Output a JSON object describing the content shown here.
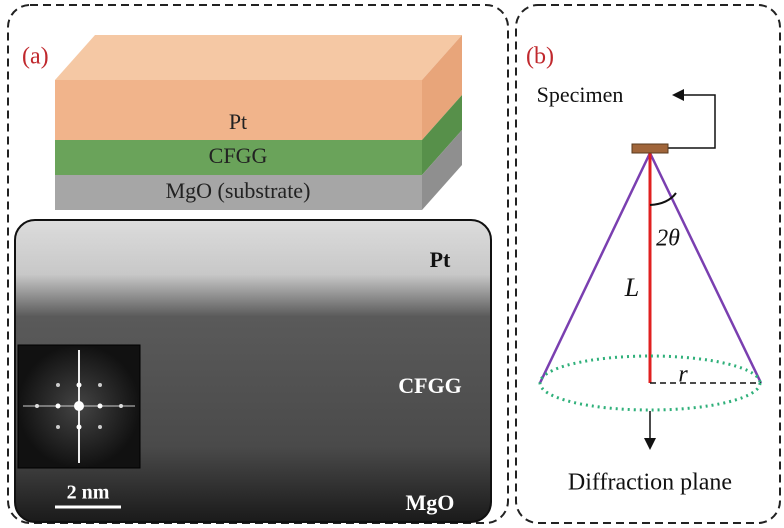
{
  "panels": {
    "a": {
      "label": "(a)",
      "stack": {
        "layers": [
          "Pt",
          "CFGG",
          "MgO (substrate)"
        ]
      },
      "micrograph": {
        "labels": [
          "Pt",
          "CFGG",
          "MgO"
        ],
        "scale_bar": "2 nm"
      }
    },
    "b": {
      "label": "(b)",
      "specimen": "Specimen",
      "angle": "2θ",
      "length": "L",
      "radius": "r",
      "plane": "Diffraction plane"
    }
  }
}
